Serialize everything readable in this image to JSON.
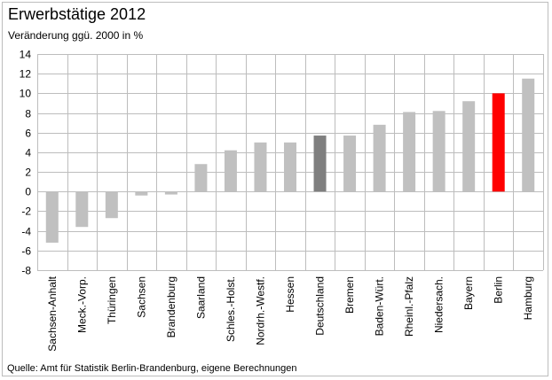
{
  "chart_data": {
    "type": "bar",
    "title": "Erwerbstätige 2012",
    "subtitle": "Veränderung ggü. 2000 in %",
    "source": "Quelle: Amt für Statistik Berlin-Brandenburg, eigene Berechnungen",
    "categories": [
      "Sachsen-Anhalt",
      "Meck.-Vorp.",
      "Thüringen",
      "Sachsen",
      "Brandenburg",
      "Saarland",
      "Schles.-Holst.",
      "Nordrh.-Westf.",
      "Hessen",
      "Deutschland",
      "Bremen",
      "Baden-Würt.",
      "Rheinl.-Pfalz",
      "Niedersach.",
      "Bayern",
      "Berlin",
      "Hamburg"
    ],
    "values": [
      -5.2,
      -3.6,
      -2.7,
      -0.4,
      -0.3,
      2.8,
      4.2,
      5.0,
      5.0,
      5.7,
      5.7,
      6.8,
      8.1,
      8.2,
      9.2,
      10.0,
      11.5
    ],
    "ylim": [
      -8,
      14
    ],
    "yticks": [
      14,
      12,
      10,
      8,
      6,
      4,
      2,
      0,
      -2,
      -4,
      -6,
      -8
    ],
    "grid": true,
    "colors": {
      "default": "#c0c0c0",
      "Deutschland": "#7f7f7f",
      "Berlin": "#ff0000",
      "grid": "#bdbdbd",
      "axis": "#8c8c8c"
    }
  }
}
